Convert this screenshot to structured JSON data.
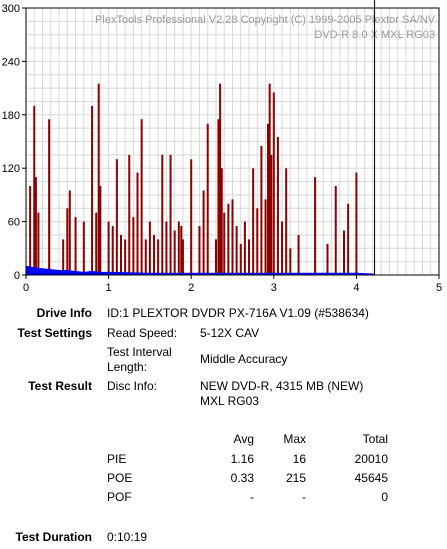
{
  "chart_data": {
    "type": "bar",
    "watermark": [
      "PlexTools Professional V2.28 Copyright (C) 1999-2005 Plextor SA/NV",
      "DVD-R   8.0 X   MXL RG03"
    ],
    "xlim": [
      0,
      5
    ],
    "ylim": [
      0,
      300
    ],
    "x_ticks": [
      "0",
      "1",
      "2",
      "3",
      "4",
      "5"
    ],
    "y_ticks": [
      "0",
      "60",
      "120",
      "180",
      "240",
      "300"
    ],
    "grid": true,
    "cursor_x": 4.22,
    "series": [
      {
        "color": "#8b0000",
        "x": [
          0.05,
          0.1,
          0.12,
          0.15,
          0.28,
          0.45,
          0.5,
          0.53,
          0.6,
          0.7,
          0.8,
          0.85,
          0.88,
          0.9,
          1.0,
          1.05,
          1.1,
          1.15,
          1.2,
          1.25,
          1.3,
          1.35,
          1.4,
          1.45,
          1.5,
          1.55,
          1.6,
          1.65,
          1.7,
          1.75,
          1.8,
          1.85,
          1.88,
          1.9,
          2.0,
          2.1,
          2.15,
          2.2,
          2.3,
          2.33,
          2.35,
          2.37,
          2.4,
          2.45,
          2.5,
          2.55,
          2.6,
          2.65,
          2.7,
          2.75,
          2.8,
          2.85,
          2.9,
          2.93,
          2.95,
          2.97,
          3.0,
          3.05,
          3.1,
          3.15,
          3.2,
          3.3,
          3.5,
          3.65,
          3.75,
          3.85,
          3.9,
          4.0
        ],
        "values": [
          100,
          190,
          110,
          70,
          175,
          40,
          75,
          95,
          65,
          60,
          190,
          70,
          215,
          100,
          60,
          55,
          130,
          45,
          40,
          135,
          65,
          115,
          175,
          40,
          60,
          45,
          40,
          135,
          60,
          135,
          50,
          60,
          55,
          40,
          130,
          55,
          95,
          170,
          40,
          175,
          215,
          120,
          70,
          80,
          85,
          55,
          35,
          60,
          40,
          120,
          75,
          145,
          85,
          170,
          215,
          135,
          205,
          155,
          60,
          120,
          30,
          45,
          110,
          35,
          100,
          50,
          80,
          115
        ]
      },
      {
        "color": "#0000ff",
        "x": [
          0.0,
          0.1,
          0.2,
          0.3,
          0.4,
          0.5,
          0.6,
          0.7,
          0.8,
          0.9,
          1.0,
          1.5,
          2.0,
          2.5,
          3.0,
          3.5,
          4.0,
          4.22
        ],
        "values": [
          10,
          8,
          7,
          6,
          5,
          5,
          4,
          3,
          4,
          3,
          3,
          2,
          2,
          2,
          2,
          2,
          2,
          1
        ]
      }
    ]
  },
  "info": {
    "drive_info": {
      "label": "Drive Info",
      "value": "ID:1 PLEXTOR DVDR PX-716A V1.09 (#538634)"
    },
    "test_settings": {
      "label": "Test Settings",
      "read_speed_label": "Read Speed:",
      "read_speed": "5-12X CAV",
      "interval_label": [
        "Test Interval",
        "Length:"
      ],
      "interval": "Middle Accuracy"
    },
    "test_result": {
      "label": "Test Result",
      "disc_info_label": "Disc Info:",
      "disc_info": [
        "NEW DVD-R, 4315 MB (NEW)",
        "MXL RG03"
      ]
    },
    "table": {
      "headers": [
        "Avg",
        "Max",
        "Total"
      ],
      "rows": [
        {
          "name": "PIE",
          "avg": "1.16",
          "max": "16",
          "total": "20010"
        },
        {
          "name": "POE",
          "avg": "0.33",
          "max": "215",
          "total": "45645"
        },
        {
          "name": "POF",
          "avg": "-",
          "max": "-",
          "total": "0"
        }
      ]
    },
    "duration": {
      "label": "Test Duration",
      "value": "0:10:19"
    }
  }
}
